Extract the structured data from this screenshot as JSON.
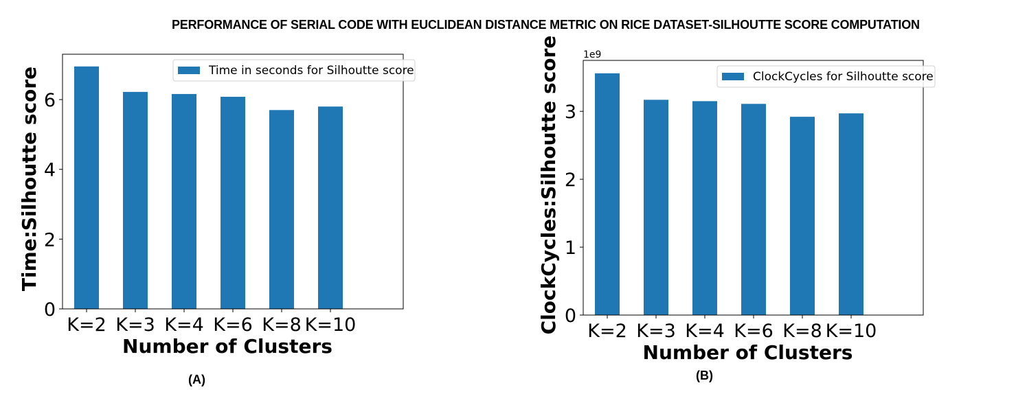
{
  "title": "PERFORMANCE OF SERIAL CODE WITH EUCLIDEAN DISTANCE METRIC ON RICE DATASET-SILHOUTTE SCORE COMPUTATION",
  "colors": {
    "bar": "#1f77b4"
  },
  "chart_data": [
    {
      "type": "bar",
      "caption": "(A)",
      "categories": [
        "K=2",
        "K=3",
        "K=4",
        "K=6",
        "K=8",
        "K=10"
      ],
      "series": [
        {
          "name": "Time in seconds for Silhoutte score",
          "values": [
            6.95,
            6.22,
            6.16,
            6.08,
            5.7,
            5.8
          ]
        }
      ],
      "xlabel": "Number of Clusters",
      "ylabel": "Time:Silhoutte score",
      "ylim": [
        0,
        7.3
      ],
      "yticks": [
        "0",
        "2",
        "4",
        "6"
      ],
      "offset_text": "",
      "legend": "top-right",
      "grid": false
    },
    {
      "type": "bar",
      "caption": "(B)",
      "categories": [
        "K=2",
        "K=3",
        "K=4",
        "K=6",
        "K=8",
        "K=10"
      ],
      "series": [
        {
          "name": "ClockCycles for Silhoutte score",
          "values": [
            3.56,
            3.17,
            3.15,
            3.11,
            2.92,
            2.97
          ]
        }
      ],
      "xlabel": "Number of Clusters",
      "ylabel": "ClockCycles:Silhoutte score",
      "ylim": [
        0,
        3.75
      ],
      "yticks": [
        "0",
        "1",
        "2",
        "3"
      ],
      "offset_text": "1e9",
      "legend": "top-right",
      "grid": false
    }
  ]
}
